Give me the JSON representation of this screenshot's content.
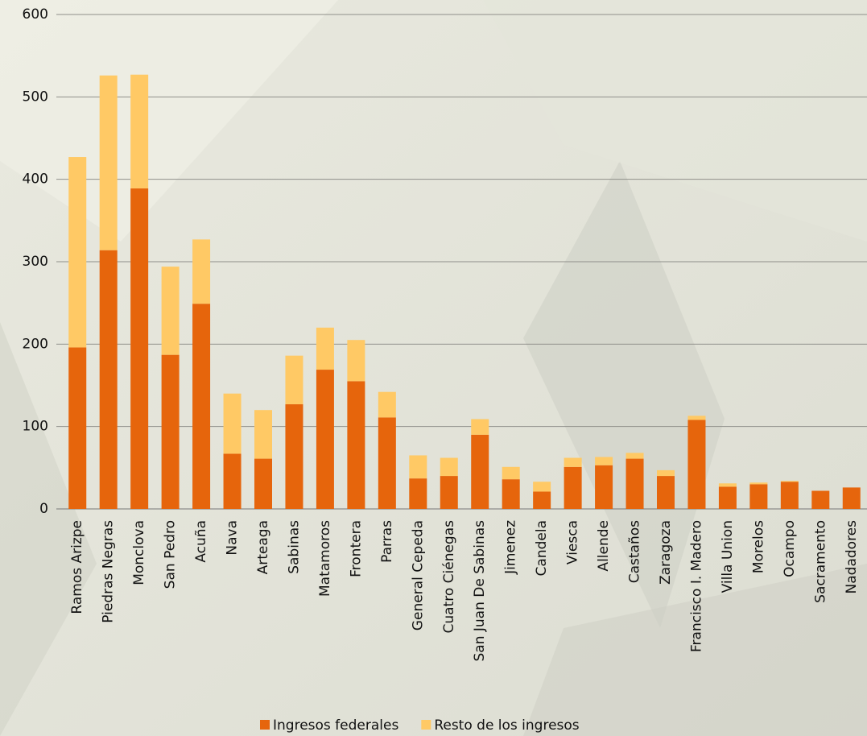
{
  "chart_data": {
    "type": "stacked_bar",
    "categories": [
      "Ramos Arizpe",
      "Piedras Negras",
      "Monclova",
      "San Pedro",
      "Acuña",
      "Nava",
      "Arteaga",
      "Sabinas",
      "Matamoros",
      "Frontera",
      "Parras",
      "General Cepeda",
      "Cuatro Ciénegas",
      "San Juan De Sabinas",
      "Jimenez",
      "Candela",
      "Viesca",
      "Allende",
      "Castaños",
      "Zaragoza",
      "Francisco  I. Madero",
      "Villa Union",
      "Morelos",
      "Ocampo",
      "Sacramento",
      "Nadadores"
    ],
    "series": [
      {
        "name": "Ingresos federales",
        "color": "#e6650c",
        "values": [
          196,
          314,
          389,
          187,
          249,
          67,
          61,
          127,
          169,
          155,
          111,
          37,
          40,
          90,
          36,
          21,
          51,
          53,
          61,
          40,
          108,
          27,
          30,
          33,
          22,
          26
        ]
      },
      {
        "name": "Resto de los ingresos",
        "color": "#ffc965",
        "values": [
          231,
          212,
          138,
          107,
          78,
          73,
          59,
          59,
          51,
          50,
          31,
          28,
          22,
          19,
          15,
          12,
          11,
          10,
          7,
          7,
          5,
          4,
          2,
          1,
          0,
          0
        ]
      }
    ],
    "ylim": [
      0,
      600
    ],
    "yticks": [
      0,
      100,
      200,
      300,
      400,
      500,
      600
    ],
    "grid": true,
    "legend": "bottom"
  }
}
